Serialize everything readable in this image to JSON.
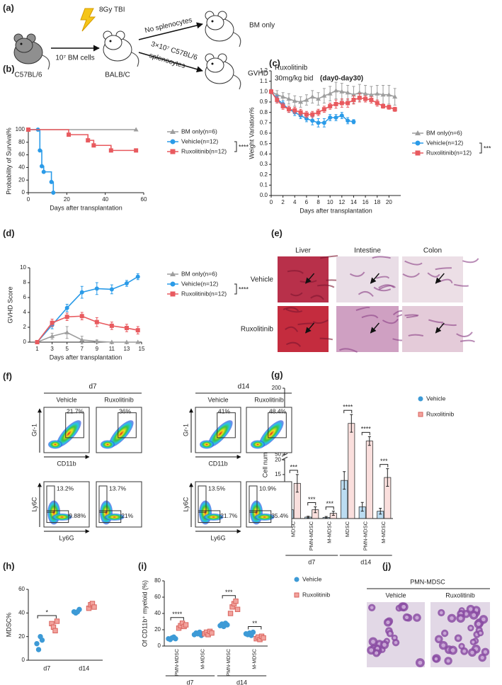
{
  "diagram": {
    "label": "(a)",
    "donor": "C57BL/6",
    "cells": "10⁷ BM cells",
    "irradiation": "8Gy TBI",
    "recipient": "BALB/C",
    "branch_top": "No splenocytes",
    "branch_bottom": [
      "3×10⁷ C57BL/6",
      "splenocytes"
    ],
    "group_top": "BM only",
    "group_bottom": "GVHD",
    "treatment": [
      "Ruxolitinib",
      "30mg/kg bid"
    ],
    "period": "(day0-day30)"
  },
  "chart_data": [
    {
      "label": "(b)",
      "type": "line",
      "step": true,
      "xlabel": "Days after transplantation",
      "ylabel": "Probability of Survival%",
      "xlim": [
        0,
        60
      ],
      "xticks": [
        0,
        20,
        40,
        60
      ],
      "ylim": [
        0,
        100
      ],
      "yticks": [
        0,
        20,
        40,
        60,
        80,
        100
      ],
      "significance": "****",
      "series": [
        {
          "name": "BM only(n=6)",
          "color": "#9e9e9e",
          "marker": "triangle",
          "x": [
            0,
            56
          ],
          "values": [
            100,
            100
          ]
        },
        {
          "name": "Vehicle(n=12)",
          "color": "#2b9be8",
          "marker": "circle",
          "x": [
            0,
            5,
            6,
            7,
            8,
            12,
            13
          ],
          "values": [
            100,
            100,
            67,
            42,
            33,
            17,
            0
          ]
        },
        {
          "name": "Ruxolitinib(n=12)",
          "color": "#e85a5f",
          "marker": "square",
          "x": [
            0,
            21,
            31,
            34,
            43,
            56
          ],
          "values": [
            100,
            92,
            83,
            75,
            67,
            67
          ]
        }
      ]
    },
    {
      "label": "(c)",
      "type": "line",
      "xlabel": "Days after transplantation",
      "ylabel": "Weight  Variation%",
      "xlim": [
        0,
        22
      ],
      "xticks": [
        0,
        2,
        4,
        6,
        8,
        10,
        12,
        14,
        16,
        18,
        20
      ],
      "ylim": [
        0,
        1.2
      ],
      "yticks": [
        {
          "value": 0,
          "label": "0.0"
        },
        0.1,
        0.2,
        0.3,
        0.4,
        0.5,
        0.6,
        0.7,
        0.8,
        0.9,
        {
          "value": 1,
          "label": "1.0"
        },
        1.1,
        1.2
      ],
      "significance": "***",
      "series": [
        {
          "name": "BM only(n=6)",
          "color": "#9e9e9e",
          "marker": "triangle",
          "x": [
            0,
            1,
            2,
            3,
            4,
            5,
            6,
            7,
            8,
            9,
            10,
            11,
            12,
            13,
            14,
            15,
            16,
            17,
            18,
            19,
            20,
            21
          ],
          "values": [
            1.0,
            0.97,
            0.95,
            0.93,
            0.91,
            0.9,
            0.92,
            0.95,
            0.93,
            0.96,
            0.98,
            1.01,
            1.0,
            0.99,
            0.97,
            0.99,
            0.98,
            0.97,
            0.98,
            0.97,
            0.97,
            0.95
          ],
          "errors": [
            0.02,
            0.04,
            0.04,
            0.05,
            0.05,
            0.05,
            0.05,
            0.06,
            0.06,
            0.07,
            0.07,
            0.08,
            0.08,
            0.07,
            0.08,
            0.08,
            0.08,
            0.08,
            0.08,
            0.09,
            0.09,
            0.08
          ]
        },
        {
          "name": "Vehicle(n=12)",
          "color": "#2b9be8",
          "marker": "circle",
          "x": [
            0,
            1,
            2,
            3,
            4,
            5,
            6,
            7,
            8,
            9,
            10,
            11,
            12,
            13,
            14
          ],
          "values": [
            1.0,
            0.93,
            0.88,
            0.83,
            0.8,
            0.77,
            0.74,
            0.72,
            0.7,
            0.7,
            0.75,
            0.75,
            0.77,
            0.72,
            0.71
          ],
          "errors": [
            0.02,
            0.03,
            0.03,
            0.03,
            0.03,
            0.03,
            0.03,
            0.04,
            0.04,
            0.04,
            0.03,
            0.03,
            0.03,
            0.03,
            0.02
          ]
        },
        {
          "name": "Ruxolitinib(n=12)",
          "color": "#e85a5f",
          "marker": "square",
          "x": [
            0,
            1,
            2,
            3,
            4,
            5,
            6,
            7,
            8,
            9,
            10,
            11,
            12,
            13,
            14,
            15,
            16,
            17,
            18,
            19,
            20,
            21
          ],
          "values": [
            1.0,
            0.92,
            0.86,
            0.83,
            0.82,
            0.8,
            0.78,
            0.78,
            0.8,
            0.83,
            0.86,
            0.88,
            0.89,
            0.89,
            0.92,
            0.94,
            0.93,
            0.92,
            0.89,
            0.86,
            0.85,
            0.83
          ],
          "errors": [
            0.02,
            0.03,
            0.03,
            0.03,
            0.03,
            0.03,
            0.03,
            0.03,
            0.03,
            0.03,
            0.03,
            0.04,
            0.04,
            0.04,
            0.04,
            0.04,
            0.03,
            0.03,
            0.03,
            0.02,
            0.02,
            0.02
          ]
        }
      ]
    },
    {
      "label": "(d)",
      "type": "line",
      "xlabel": "Days after transplantation",
      "ylabel": "GVHD Score",
      "xlim": [
        0,
        15
      ],
      "xticks": [
        1,
        3,
        5,
        7,
        9,
        11,
        13,
        15
      ],
      "ylim": [
        0,
        10
      ],
      "yticks": [
        0,
        2,
        4,
        6,
        8,
        10
      ],
      "significance": "****",
      "series": [
        {
          "name": "BM only(n=6)",
          "color": "#9e9e9e",
          "marker": "triangle",
          "x": [
            1,
            3,
            5,
            7,
            9,
            11,
            13,
            14.5
          ],
          "values": [
            0,
            0.8,
            1.3,
            0.3,
            0.1,
            0,
            0,
            0
          ],
          "errors": [
            0,
            0.4,
            0.8,
            0.5,
            0.2,
            0,
            0,
            0
          ]
        },
        {
          "name": "Vehicle(n=12)",
          "color": "#2b9be8",
          "marker": "circle",
          "x": [
            1,
            3,
            5,
            7,
            9,
            11,
            13,
            14.5
          ],
          "values": [
            0,
            2.3,
            4.6,
            6.7,
            7.2,
            7.1,
            7.9,
            8.8
          ],
          "errors": [
            0,
            0.5,
            0.5,
            0.8,
            0.8,
            0.6,
            0.4,
            0.4
          ]
        },
        {
          "name": "Ruxolitinib(n=12)",
          "color": "#e85a5f",
          "marker": "square",
          "x": [
            1,
            3,
            5,
            7,
            9,
            11,
            13,
            14.5
          ],
          "values": [
            0,
            2.6,
            3.4,
            3.5,
            2.7,
            2.2,
            1.9,
            1.6
          ],
          "errors": [
            0,
            0.5,
            0.5,
            0.5,
            0.6,
            0.5,
            0.5,
            0.5
          ]
        }
      ]
    },
    {
      "label": "(g)",
      "type": "bar",
      "ylabel": "Cell number(10⁴)",
      "categories": [
        "MDSC",
        "PMN-MDSC",
        "M-MDSC",
        "MDSC",
        "PMN-MDSC",
        "M-MDSC"
      ],
      "groups": [
        "d7",
        "d14"
      ],
      "ylim": [
        0,
        200
      ],
      "ybreak": [
        20,
        50
      ],
      "yticks": [
        0,
        5,
        10,
        15,
        20,
        50,
        100,
        150,
        200
      ],
      "significance": [
        "***",
        "***",
        "***",
        "****",
        "****",
        "***"
      ],
      "series": [
        {
          "name": "Vehicle",
          "color": "#3d9ad6",
          "marker": "circle",
          "values": [
            3,
            0.5,
            0.4,
            13,
            4,
            2.5
          ],
          "errors": [
            0.8,
            0.3,
            0.3,
            3,
            1.5,
            1
          ]
        },
        {
          "name": "Ruxolitinib",
          "color": "#f2a39d",
          "marker": "square",
          "values": [
            12,
            3,
            1.8,
            120,
            80,
            14
          ],
          "errors": [
            3,
            1,
            0.7,
            20,
            10,
            3
          ]
        }
      ]
    },
    {
      "label": "(h)",
      "type": "scatter",
      "ylabel": "MDSC%",
      "categories": [
        "d7",
        "d14"
      ],
      "ylim": [
        0,
        60
      ],
      "yticks": [
        0,
        20,
        40,
        60
      ],
      "significance": [
        "*",
        null
      ],
      "series": [
        {
          "color": "#3d9ad6",
          "marker": "circle",
          "points": [
            [
              14,
              9,
              20,
              17
            ],
            [
              41,
              40,
              41,
              43
            ]
          ]
        },
        {
          "color": "#f2a39d",
          "marker": "square",
          "points": [
            [
              31,
              28,
              25,
              33
            ],
            [
              44,
              47,
              48,
              45
            ]
          ]
        }
      ]
    },
    {
      "label": "(i)",
      "type": "scatter",
      "ylabel": "Of CD11b⁺ myeloid (%)",
      "categories": [
        "PMN-MDSC",
        "M-MDSC",
        "PMN-MDSC",
        "M-MDSC"
      ],
      "groups": [
        "d7",
        "d14"
      ],
      "ylim": [
        0,
        80
      ],
      "yticks": [
        0,
        20,
        40,
        60,
        80
      ],
      "significance": [
        "****",
        null,
        "***",
        "**"
      ],
      "series": [
        {
          "name": "Vehicle",
          "color": "#3d9ad6",
          "marker": "circle",
          "points": [
            [
              9,
              8,
              10,
              11,
              9
            ],
            [
              14,
              16,
              15,
              17,
              13
            ],
            [
              25,
              27,
              24,
              28,
              26
            ],
            [
              15,
              14,
              16,
              13,
              17
            ]
          ]
        },
        {
          "name": "Ruxolitinib",
          "color": "#f2a39d",
          "marker": "square",
          "points": [
            [
              22,
              25,
              28,
              24,
              26
            ],
            [
              15,
              17,
              14,
              18,
              16
            ],
            [
              40,
              48,
              52,
              55,
              45
            ],
            [
              9,
              11,
              8,
              12,
              10
            ]
          ]
        }
      ]
    }
  ],
  "histology": {
    "label": "(e)",
    "tissues": [
      "Liver",
      "Intestine",
      "Colon"
    ],
    "groups": [
      "Vehicle",
      "Ruxolitinib"
    ]
  },
  "flow": {
    "label": "(f)",
    "days": [
      "d7",
      "d14"
    ],
    "conditions": [
      "Vehicle",
      "Ruxolitinib"
    ],
    "markers": {
      "gr1": "Gr-1",
      "cd11b": "CD11b",
      "ly6c": "Ly6C",
      "ly6g": "Ly6G"
    },
    "gr1_gates": [
      [
        "21.7%",
        "36%"
      ],
      [
        "41%",
        "48.4%"
      ]
    ],
    "ly6_gates": [
      [
        [
          "13.2%",
          "9.88%"
        ],
        [
          "13.7%",
          "21%"
        ]
      ],
      [
        [
          "13.5%",
          "21.7%"
        ],
        [
          "10.9%",
          "35.4%"
        ]
      ]
    ]
  },
  "micrograph": {
    "label": "(j)",
    "population": "PMN-MDSC",
    "groups": [
      "Vehicle",
      "Ruxolitinib"
    ]
  }
}
